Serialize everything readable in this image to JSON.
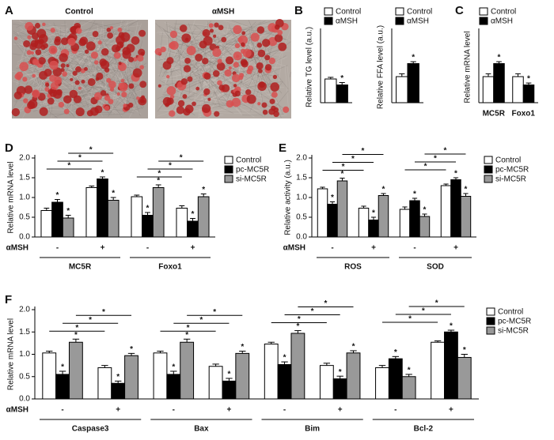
{
  "figure_a": {
    "panel": "A",
    "labels": [
      "Control",
      "αMSH"
    ]
  },
  "chart_data": [
    {
      "type": "bar",
      "panel": "B",
      "ylabel": "Relative TG level (a.u.)",
      "categories": [
        null
      ],
      "ylim": [
        0,
        3
      ],
      "series": [
        {
          "name": "Control",
          "color": "#ffffff",
          "values": [
            1.0
          ],
          "errors": [
            0.07
          ]
        },
        {
          "name": "αMSH",
          "color": "#000000",
          "values": [
            0.75
          ],
          "errors": [
            0.1
          ],
          "significance": [
            "*"
          ]
        }
      ]
    },
    {
      "type": "bar",
      "ylabel": "Relative FFA level (a.u.)",
      "categories": [
        null
      ],
      "ylim": [
        0,
        3
      ],
      "series": [
        {
          "name": "Control",
          "color": "#ffffff",
          "values": [
            1.1
          ],
          "errors": [
            0.12
          ]
        },
        {
          "name": "αMSH",
          "color": "#000000",
          "values": [
            1.65
          ],
          "errors": [
            0.08
          ],
          "significance": [
            "*"
          ]
        }
      ]
    },
    {
      "type": "bar",
      "panel": "C",
      "ylabel": "Relative mRNA  level",
      "categories": [
        "MC5R",
        "Foxo1"
      ],
      "ylim": [
        0,
        3
      ],
      "series": [
        {
          "name": "Control",
          "color": "#ffffff",
          "values": [
            1.1,
            1.1
          ],
          "errors": [
            0.12,
            0.12
          ]
        },
        {
          "name": "αMSH",
          "color": "#000000",
          "values": [
            1.65,
            0.75
          ],
          "errors": [
            0.08,
            0.08
          ],
          "significance": [
            "*",
            "*"
          ]
        }
      ]
    },
    {
      "type": "bar",
      "panel": "D",
      "ylabel": "Relative mRNA level",
      "row_label": "αMSH",
      "categories": [
        "-",
        "+",
        "-",
        "+"
      ],
      "groups": [
        "MC5R",
        "Foxo1"
      ],
      "ylim": [
        0,
        2
      ],
      "yticks": [
        {
          "value": 0,
          "label": "0.0"
        },
        0.5,
        {
          "value": 1,
          "label": "1.0"
        },
        1.5,
        {
          "value": 2,
          "label": "2.0"
        }
      ],
      "series": [
        {
          "name": "Control",
          "color": "#ffffff",
          "values": [
            0.67,
            1.25,
            1.02,
            0.73
          ],
          "errors": [
            0.06,
            0.04,
            0.04,
            0.06
          ]
        },
        {
          "name": "pc-MC5R",
          "color": "#000000",
          "values": [
            0.88,
            1.47,
            0.55,
            0.4
          ],
          "errors": [
            0.07,
            0.05,
            0.07,
            0.07
          ],
          "significance": [
            "*",
            "*",
            "*",
            "*"
          ]
        },
        {
          "name": "si-MC5R",
          "color": "#999999",
          "values": [
            0.48,
            0.93,
            1.25,
            1.02
          ],
          "errors": [
            0.07,
            0.07,
            0.07,
            0.07
          ],
          "significance": [
            "*",
            "*",
            "*",
            "*"
          ]
        }
      ],
      "comparisons": [
        {
          "series": 0,
          "from": 0,
          "to": 1,
          "label": "*"
        },
        {
          "series": 1,
          "from": 0,
          "to": 1,
          "label": "*"
        },
        {
          "series": 2,
          "from": 0,
          "to": 1,
          "label": "*"
        },
        {
          "series": 0,
          "from": 2,
          "to": 3,
          "label": "*"
        },
        {
          "series": 1,
          "from": 2,
          "to": 3,
          "label": "*"
        },
        {
          "series": 2,
          "from": 2,
          "to": 3,
          "label": "*"
        }
      ]
    },
    {
      "type": "bar",
      "panel": "E",
      "ylabel": "Relative activity (a.u.)",
      "row_label": "αMSH",
      "categories": [
        "-",
        "+",
        "-",
        "+"
      ],
      "groups": [
        "ROS",
        "SOD"
      ],
      "ylim": [
        0,
        2
      ],
      "yticks": [
        {
          "value": 0,
          "label": "0.0"
        },
        0.5,
        {
          "value": 1,
          "label": "1.0"
        },
        1.5,
        {
          "value": 2,
          "label": "2.0"
        }
      ],
      "series": [
        {
          "name": "Control",
          "color": "#ffffff",
          "values": [
            1.22,
            0.73,
            0.7,
            1.3
          ],
          "errors": [
            0.04,
            0.05,
            0.06,
            0.04
          ]
        },
        {
          "name": "pc-MC5R",
          "color": "#000000",
          "values": [
            0.83,
            0.43,
            0.92,
            1.45
          ],
          "errors": [
            0.06,
            0.07,
            0.06,
            0.05
          ],
          "significance": [
            "*",
            "*",
            "*",
            "*"
          ]
        },
        {
          "name": "si-MC5R",
          "color": "#999999",
          "values": [
            1.42,
            1.05,
            0.52,
            1.03
          ],
          "errors": [
            0.07,
            0.05,
            0.06,
            0.07
          ],
          "significance": [
            "*",
            "*",
            "*",
            "*"
          ]
        }
      ],
      "comparisons": [
        {
          "series": 0,
          "from": 0,
          "to": 1,
          "label": "*"
        },
        {
          "series": 1,
          "from": 0,
          "to": 1,
          "label": "*"
        },
        {
          "series": 2,
          "from": 0,
          "to": 1,
          "label": "*"
        },
        {
          "series": 0,
          "from": 2,
          "to": 3,
          "label": "*"
        },
        {
          "series": 1,
          "from": 2,
          "to": 3,
          "label": "*"
        },
        {
          "series": 2,
          "from": 2,
          "to": 3,
          "label": "*"
        }
      ]
    },
    {
      "type": "bar",
      "panel": "F",
      "ylabel": "Relative mRNA  level",
      "row_label": "αMSH",
      "categories": [
        "-",
        "+",
        "-",
        "+",
        "-",
        "+",
        "-",
        "+"
      ],
      "groups": [
        "Caspase3",
        "Bax",
        "Bim",
        "Bcl-2"
      ],
      "ylim": [
        0,
        2
      ],
      "yticks": [
        {
          "value": 0,
          "label": "0.0"
        },
        0.5,
        {
          "value": 1,
          "label": "1.0"
        },
        1.5,
        {
          "value": 2,
          "label": "2.0"
        }
      ],
      "series": [
        {
          "name": "Control",
          "color": "#ffffff",
          "values": [
            1.03,
            0.7,
            1.03,
            0.73,
            1.23,
            0.75,
            0.7,
            1.27
          ],
          "errors": [
            0.04,
            0.05,
            0.04,
            0.05,
            0.04,
            0.05,
            0.05,
            0.03
          ]
        },
        {
          "name": "pc-MC5R",
          "color": "#000000",
          "values": [
            0.55,
            0.35,
            0.55,
            0.4,
            0.77,
            0.45,
            0.9,
            1.5
          ],
          "errors": [
            0.07,
            0.05,
            0.07,
            0.06,
            0.06,
            0.06,
            0.05,
            0.04
          ],
          "significance": [
            "*",
            "*",
            "*",
            "*",
            "*",
            "*",
            "*",
            "*"
          ]
        },
        {
          "name": "si-MC5R",
          "color": "#999999",
          "values": [
            1.27,
            0.97,
            1.27,
            1.02,
            1.47,
            1.03,
            0.5,
            0.93
          ],
          "errors": [
            0.07,
            0.05,
            0.07,
            0.05,
            0.06,
            0.05,
            0.05,
            0.07
          ],
          "significance": [
            "*",
            "*",
            "*",
            "*",
            "*",
            "*",
            "*",
            "*"
          ]
        }
      ],
      "comparisons": [
        {
          "series": 0,
          "from": 0,
          "to": 1,
          "label": "*"
        },
        {
          "series": 1,
          "from": 0,
          "to": 1,
          "label": "*"
        },
        {
          "series": 2,
          "from": 0,
          "to": 1,
          "label": "*"
        },
        {
          "series": 0,
          "from": 2,
          "to": 3,
          "label": "*"
        },
        {
          "series": 1,
          "from": 2,
          "to": 3,
          "label": "*"
        },
        {
          "series": 2,
          "from": 2,
          "to": 3,
          "label": "*"
        },
        {
          "series": 0,
          "from": 4,
          "to": 5,
          "label": "*"
        },
        {
          "series": 1,
          "from": 4,
          "to": 5,
          "label": "*"
        },
        {
          "series": 2,
          "from": 4,
          "to": 5,
          "label": "*"
        },
        {
          "series": 0,
          "from": 6,
          "to": 7,
          "label": "*"
        },
        {
          "series": 1,
          "from": 6,
          "to": 7,
          "label": "*"
        },
        {
          "series": 2,
          "from": 6,
          "to": 7,
          "label": "*"
        }
      ]
    }
  ]
}
